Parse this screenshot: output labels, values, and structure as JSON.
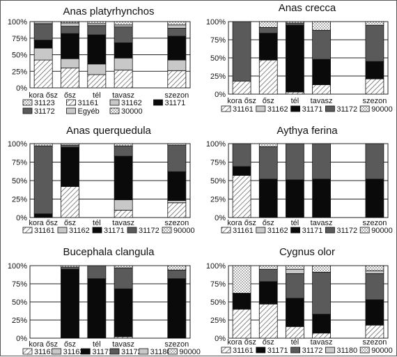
{
  "chart_data": [
    {
      "type": "bar",
      "stacked": true,
      "title": "Anas platyrhynchos",
      "categories": [
        "kora ősz",
        "ősz",
        "tél",
        "tavasz",
        "",
        "szezon"
      ],
      "ylim": [
        0,
        100
      ],
      "yticks": [
        "0%",
        "25%",
        "50%",
        "75%",
        "100%"
      ],
      "legend": [
        "31123",
        "31161",
        "31162",
        "31171",
        "31172",
        "Egyéb",
        "30000"
      ],
      "series": [
        {
          "name": "31161",
          "pattern": "hatch",
          "values": [
            42,
            30,
            20,
            27,
            null,
            26
          ]
        },
        {
          "name": "31162",
          "pattern": "light",
          "values": [
            18,
            14,
            16,
            18,
            null,
            16
          ]
        },
        {
          "name": "31171",
          "pattern": "black",
          "values": [
            12,
            38,
            44,
            23,
            null,
            36
          ]
        },
        {
          "name": "31172",
          "pattern": "dark",
          "values": [
            25,
            11,
            14,
            24,
            null,
            12
          ]
        },
        {
          "name": "Egyéb",
          "pattern": "light",
          "values": [
            3,
            5,
            3,
            3,
            null,
            5
          ]
        },
        {
          "name": "30000",
          "pattern": "dots",
          "values": [
            0,
            2,
            3,
            5,
            null,
            5
          ]
        }
      ]
    },
    {
      "type": "bar",
      "stacked": true,
      "title": "Anas crecca",
      "categories": [
        "kora ősz",
        "ősz",
        "tél",
        "tavasz",
        "",
        "szezon"
      ],
      "ylim": [
        0,
        100
      ],
      "yticks": [
        "0%",
        "25%",
        "50%",
        "75%",
        "100%"
      ],
      "legend": [
        "31161",
        "31162",
        "31171",
        "31172",
        "90000"
      ],
      "series": [
        {
          "name": "31161",
          "pattern": "hatch",
          "values": [
            18,
            47,
            3,
            13,
            null,
            21
          ]
        },
        {
          "name": "31162",
          "pattern": "light",
          "values": [
            0,
            0,
            0,
            0,
            null,
            0
          ]
        },
        {
          "name": "31171",
          "pattern": "black",
          "values": [
            0,
            37,
            92,
            35,
            null,
            24
          ]
        },
        {
          "name": "31172",
          "pattern": "dark",
          "values": [
            82,
            8,
            3,
            40,
            null,
            50
          ]
        },
        {
          "name": "90000",
          "pattern": "dots",
          "values": [
            0,
            8,
            2,
            12,
            null,
            5
          ]
        }
      ]
    },
    {
      "type": "bar",
      "stacked": true,
      "title": "Anas querquedula",
      "categories": [
        "kora ősz",
        "ősz",
        "tél",
        "tavasz",
        "",
        "szezon"
      ],
      "ylim": [
        0,
        100
      ],
      "yticks": [
        "0%",
        "25%",
        "50%",
        "75%",
        "100%"
      ],
      "legend": [
        "31161",
        "31162",
        "31171",
        "31172",
        "90000"
      ],
      "series": [
        {
          "name": "31161",
          "pattern": "hatch",
          "values": [
            0,
            42,
            null,
            10,
            null,
            20
          ]
        },
        {
          "name": "31162",
          "pattern": "light",
          "values": [
            0,
            0,
            null,
            14,
            null,
            3
          ]
        },
        {
          "name": "31171",
          "pattern": "black",
          "values": [
            5,
            53,
            null,
            59,
            null,
            39
          ]
        },
        {
          "name": "31172",
          "pattern": "dark",
          "values": [
            92,
            3,
            null,
            14,
            null,
            36
          ]
        },
        {
          "name": "90000",
          "pattern": "dots",
          "values": [
            3,
            2,
            null,
            3,
            null,
            2
          ]
        }
      ]
    },
    {
      "type": "bar",
      "stacked": true,
      "title": "Aythya ferina",
      "categories": [
        "kora ősz",
        "ősz",
        "tél",
        "tavasz",
        "",
        "szezon"
      ],
      "ylim": [
        0,
        100
      ],
      "yticks": [
        "0%",
        "25%",
        "50%",
        "75%",
        "100%"
      ],
      "legend": [
        "31161",
        "31162",
        "31171",
        "31172",
        "90000"
      ],
      "series": [
        {
          "name": "31161",
          "pattern": "hatch",
          "values": [
            57,
            0,
            0,
            0,
            null,
            0
          ]
        },
        {
          "name": "31162",
          "pattern": "light",
          "values": [
            0,
            0,
            0,
            0,
            null,
            0
          ]
        },
        {
          "name": "31171",
          "pattern": "black",
          "values": [
            12,
            52,
            51,
            52,
            null,
            52
          ]
        },
        {
          "name": "31172",
          "pattern": "dark",
          "values": [
            31,
            44,
            49,
            48,
            null,
            48
          ]
        },
        {
          "name": "90000",
          "pattern": "dots",
          "values": [
            0,
            4,
            0,
            0,
            null,
            0
          ]
        }
      ]
    },
    {
      "type": "bar",
      "stacked": true,
      "title": "Bucephala clangula",
      "categories": [
        "kora ősz",
        "ősz",
        "tél",
        "tavasz",
        "",
        "szezon"
      ],
      "ylim": [
        0,
        100
      ],
      "yticks": [
        "0%",
        "25%",
        "50%",
        "75%",
        "100%"
      ],
      "legend": [
        "31161",
        "31162",
        "31171",
        "31172",
        "31180",
        "90000"
      ],
      "series": [
        {
          "name": "31161",
          "pattern": "hatch",
          "values": [
            null,
            0,
            0,
            2,
            null,
            0
          ]
        },
        {
          "name": "31162",
          "pattern": "light",
          "values": [
            null,
            0,
            0,
            0,
            null,
            0
          ]
        },
        {
          "name": "31171",
          "pattern": "black",
          "values": [
            null,
            95,
            82,
            66,
            null,
            82
          ]
        },
        {
          "name": "31172",
          "pattern": "dark",
          "values": [
            null,
            3,
            18,
            29,
            null,
            12
          ]
        },
        {
          "name": "31180",
          "pattern": "light",
          "values": [
            null,
            0,
            0,
            0,
            null,
            0
          ]
        },
        {
          "name": "90000",
          "pattern": "dots",
          "values": [
            null,
            2,
            0,
            3,
            null,
            6
          ]
        }
      ]
    },
    {
      "type": "bar",
      "stacked": true,
      "title": "Cygnus olor",
      "categories": [
        "kora ősz",
        "ősz",
        "tél",
        "tavasz",
        "",
        "szezon"
      ],
      "ylim": [
        0,
        100
      ],
      "yticks": [
        "0%",
        "25%",
        "50%",
        "75%",
        "100%"
      ],
      "legend": [
        "31161",
        "31171",
        "31172",
        "31180",
        "90000"
      ],
      "series": [
        {
          "name": "31161",
          "pattern": "hatch",
          "values": [
            40,
            47,
            16,
            7,
            null,
            18
          ]
        },
        {
          "name": "31171",
          "pattern": "black",
          "values": [
            22,
            31,
            39,
            26,
            null,
            35
          ]
        },
        {
          "name": "31172",
          "pattern": "dark",
          "values": [
            0,
            17,
            34,
            58,
            null,
            36
          ]
        },
        {
          "name": "31180",
          "pattern": "light",
          "values": [
            0,
            0,
            6,
            0,
            null,
            4
          ]
        },
        {
          "name": "90000",
          "pattern": "dots",
          "values": [
            38,
            5,
            5,
            9,
            null,
            7
          ]
        }
      ]
    }
  ]
}
